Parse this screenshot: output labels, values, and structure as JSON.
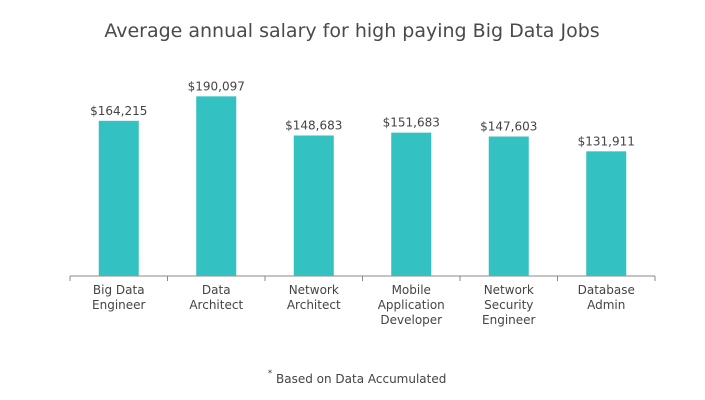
{
  "chart_data": {
    "type": "bar",
    "title": "Average annual salary for high paying Big Data Jobs",
    "categories": [
      "Big Data\nEngineer",
      "Data\nArchitect",
      "Network\nArchitect",
      "Mobile\nApplication\nDeveloper",
      "Network\nSecurity\nEngineer",
      "Database\nAdmin"
    ],
    "values": [
      164215,
      190097,
      148683,
      151683,
      147603,
      131911
    ],
    "value_labels": [
      "$164,215",
      "$190,097",
      "$148,683",
      "$151,683",
      "$147,603",
      "$131,911"
    ],
    "color": "#33c1c1",
    "ylim": [
      0,
      200000
    ],
    "footnote_marker": "*",
    "footnote": "Based on Data Accumulated"
  }
}
